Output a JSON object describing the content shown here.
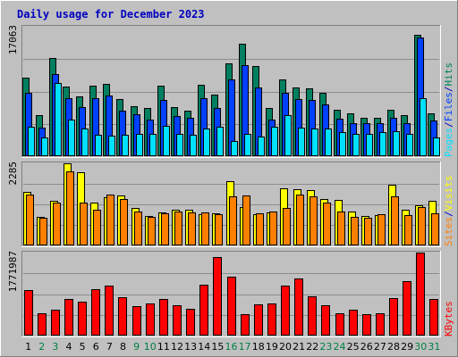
{
  "chart_data": {
    "type": "bar",
    "title": "Daily usage for December 2023",
    "x": [
      "1",
      "2",
      "3",
      "4",
      "5",
      "6",
      "7",
      "8",
      "9",
      "10",
      "11",
      "12",
      "13",
      "14",
      "15",
      "16",
      "17",
      "18",
      "19",
      "20",
      "21",
      "22",
      "23",
      "24",
      "25",
      "26",
      "27",
      "28",
      "29",
      "30",
      "31"
    ],
    "weekend_days": [
      2,
      3,
      9,
      10,
      16,
      17,
      23,
      24,
      30,
      31
    ],
    "colors": {
      "background": "#c0c0c0",
      "frame_light": "#ffffff",
      "frame_dark": "#808080",
      "title": "#0000c0",
      "weekday_label": "#000000",
      "weekend_label": "#008040",
      "pages": "#00e0ff",
      "files": "#0040ff",
      "hits": "#008060",
      "sites": "#ff8000",
      "visits": "#ffff00",
      "kbytes": "#ff0000"
    },
    "panels": [
      {
        "name": "hits-files-pages",
        "ymax_label": "17063",
        "ymax": 17063,
        "legend": [
          {
            "text": "Pages",
            "color_key": "pages"
          },
          {
            "text": "/",
            "color_key": "title"
          },
          {
            "text": "Files",
            "color_key": "files"
          },
          {
            "text": "/",
            "color_key": "title"
          },
          {
            "text": "Hits",
            "color_key": "hits"
          }
        ],
        "series": [
          {
            "name": "Hits",
            "color_key": "hits",
            "values": [
              10400,
              5400,
              13000,
              9200,
              7900,
              9300,
              9500,
              7500,
              6600,
              6300,
              9300,
              6500,
              6000,
              9400,
              8100,
              12200,
              14800,
              11900,
              6400,
              10100,
              9100,
              8900,
              8400,
              6100,
              5600,
              5100,
              5100,
              6100,
              5400,
              16000,
              5700
            ]
          },
          {
            "name": "Files",
            "color_key": "files",
            "values": [
              8300,
              3800,
              10800,
              7600,
              6500,
              7600,
              8000,
              6000,
              5500,
              4800,
              7400,
              5300,
              5100,
              7600,
              6300,
              10100,
              12000,
              9100,
              4800,
              8400,
              7500,
              7400,
              6800,
              5000,
              4400,
              4400,
              4300,
              5100,
              4400,
              15700,
              4700
            ]
          },
          {
            "name": "Pages",
            "color_key": "pages",
            "values": [
              3900,
              2500,
              9700,
              4800,
              3600,
              2800,
              2700,
              2800,
              3000,
              2900,
              4000,
              3000,
              2800,
              3700,
              3900,
              2000,
              3000,
              2600,
              3900,
              5400,
              3800,
              3700,
              3700,
              3200,
              3000,
              2900,
              3200,
              3300,
              2900,
              7600,
              2500
            ]
          }
        ]
      },
      {
        "name": "visits-sites",
        "ymax_label": "2285",
        "ymax": 2285,
        "legend": [
          {
            "text": "Sites",
            "color_key": "sites"
          },
          {
            "text": "/",
            "color_key": "title"
          },
          {
            "text": "Visits",
            "color_key": "visits"
          }
        ],
        "series": [
          {
            "name": "Visits",
            "color_key": "visits",
            "values": [
              1500,
              800,
              1250,
              2290,
              2040,
              1200,
              1330,
              1400,
              1050,
              810,
              930,
              1000,
              1000,
              880,
              900,
              1780,
              1070,
              880,
              920,
              1580,
              1570,
              1540,
              1290,
              1260,
              950,
              830,
              850,
              1700,
              1000,
              1120,
              1250
            ]
          },
          {
            "name": "Sites",
            "color_key": "sites",
            "values": [
              1420,
              780,
              1200,
              2060,
              1200,
              1000,
              1420,
              1290,
              940,
              800,
              890,
              950,
              930,
              930,
              880,
              1370,
              1400,
              900,
              940,
              1050,
              1420,
              1360,
              1200,
              940,
              800,
              760,
              880,
              1360,
              850,
              1060,
              900
            ]
          }
        ]
      },
      {
        "name": "kbytes",
        "ymax_label": "1771987",
        "ymax": 1771987,
        "legend": [
          {
            "text": "KBytes",
            "color_key": "kbytes"
          }
        ],
        "series": [
          {
            "name": "KBytes",
            "color_key": "kbytes",
            "values": [
              975000,
              480000,
              560000,
              790000,
              720000,
              1000000,
              1070000,
              810000,
              620000,
              690000,
              780000,
              640000,
              580000,
              1080000,
              1680000,
              1260000,
              460000,
              670000,
              690000,
              1070000,
              1220000,
              830000,
              640000,
              480000,
              560000,
              460000,
              470000,
              800000,
              1160000,
              1770000,
              790000
            ]
          }
        ]
      }
    ]
  }
}
